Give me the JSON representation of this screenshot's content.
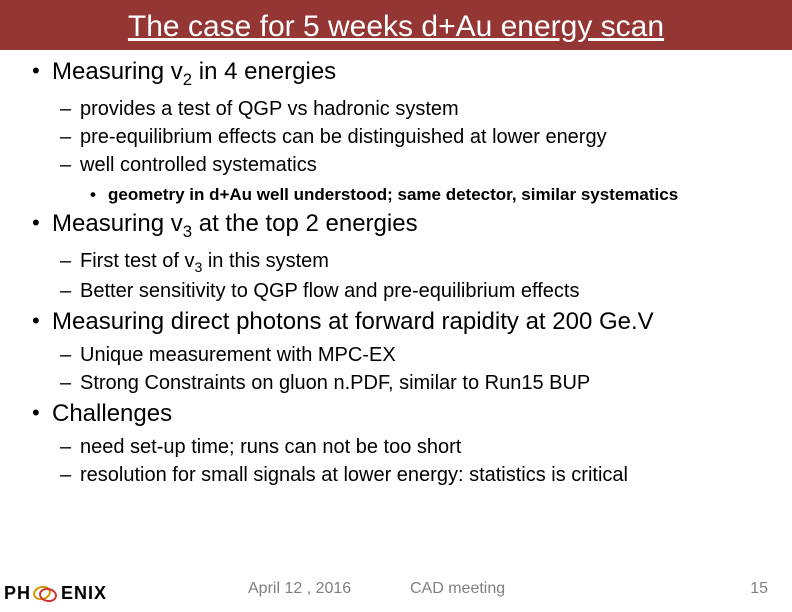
{
  "title": "The case for 5 weeks d+Au energy scan",
  "colors": {
    "title_bg": "#943634",
    "title_text": "#ffffff",
    "body_text": "#000000",
    "footer_text": "#808080",
    "background": "#ffffff"
  },
  "fonts": {
    "title_size": 30,
    "l1_size": 24,
    "l2_size": 20,
    "l3_size": 17,
    "footer_size": 16
  },
  "bullets": [
    {
      "text_pre": "Measuring v",
      "sub": "2",
      "text_post": " in 4 energies",
      "children": [
        {
          "text": "provides a test  of QGP vs hadronic system"
        },
        {
          "text": "pre-equilibrium effects can be distinguished at lower energy"
        },
        {
          "text": "well controlled systematics",
          "children": [
            {
              "text": "geometry in d+Au well understood; same detector, similar systematics"
            }
          ]
        }
      ]
    },
    {
      "text_pre": "Measuring v",
      "sub": "3",
      "text_post": " at the top 2 energies",
      "children": [
        {
          "text_pre": "First test of v",
          "sub": "3",
          "text_post": " in this system"
        },
        {
          "text": "Better sensitivity to QGP flow and pre-equilibrium effects"
        }
      ]
    },
    {
      "text": "Measuring direct photons at forward rapidity at 200 Ge.V",
      "children": [
        {
          "text": "Unique measurement with MPC-EX"
        },
        {
          "text": "Strong Constraints on gluon n.PDF, similar to Run15 BUP"
        }
      ]
    },
    {
      "text": "Challenges",
      "children": [
        {
          "text": "need set-up time; runs can not be too short"
        },
        {
          "text": "resolution for small signals at lower energy: statistics is critical"
        }
      ]
    }
  ],
  "footer": {
    "date": "April 12 , 2016",
    "meeting": "CAD meeting",
    "page": "15",
    "logo_ph": "PH",
    "logo_enix": "ENIX"
  }
}
